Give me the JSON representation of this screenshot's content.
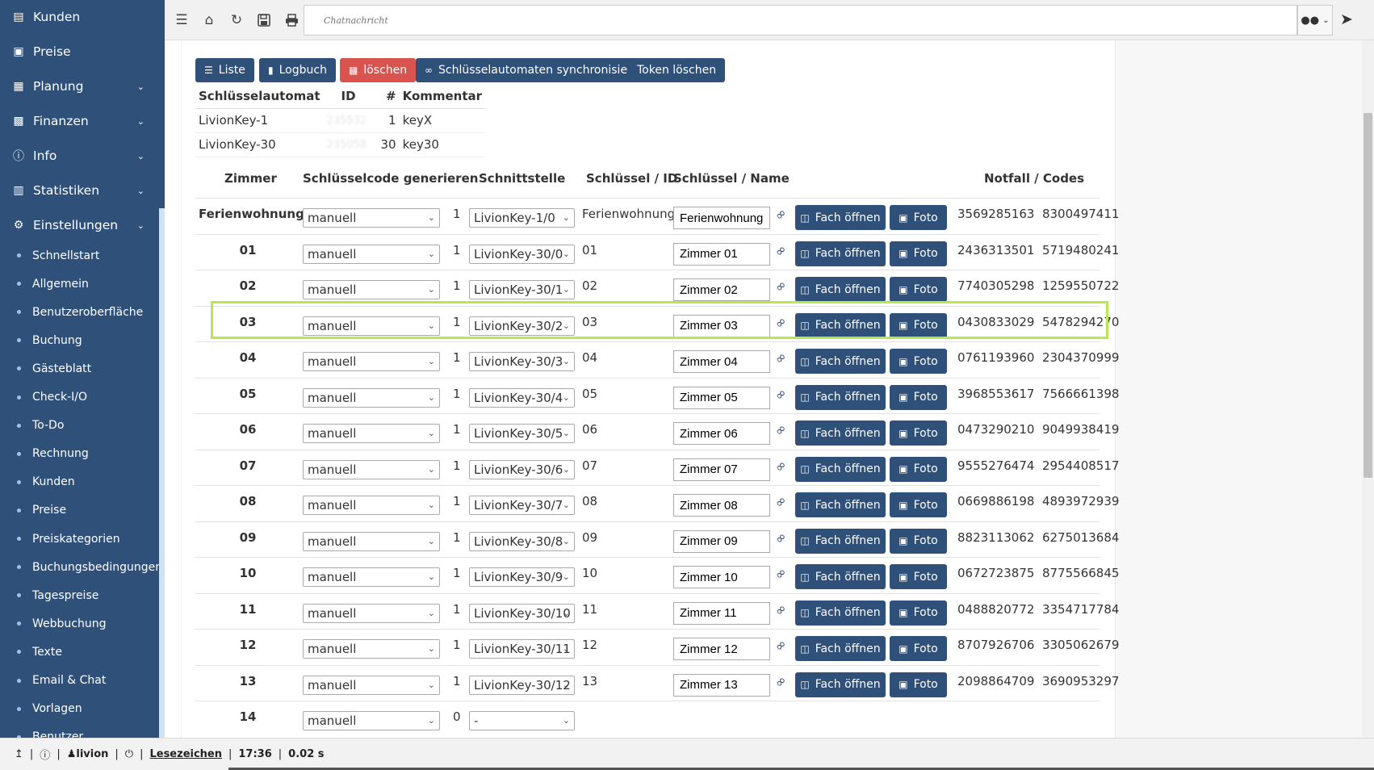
{
  "sidebar": {
    "top_items": [
      {
        "label": "Kunden",
        "icon": "id-card-icon",
        "expandable": false
      },
      {
        "label": "Preise",
        "icon": "money-icon",
        "expandable": false
      },
      {
        "label": "Planung",
        "icon": "calendar-icon",
        "expandable": true
      },
      {
        "label": "Finanzen",
        "icon": "calculator-icon",
        "expandable": true
      },
      {
        "label": "Info",
        "icon": "info-icon",
        "expandable": true
      },
      {
        "label": "Statistiken",
        "icon": "bar-chart-icon",
        "expandable": true
      },
      {
        "label": "Einstellungen",
        "icon": "gear-icon",
        "expandable": true
      }
    ],
    "sub_items": [
      "Schnellstart",
      "Allgemein",
      "Benutzeroberfläche",
      "Buchung",
      "Gästeblatt",
      "Check-I/O",
      "To-Do",
      "Rechnung",
      "Kunden",
      "Preise",
      "Preiskategorien",
      "Buchungsbedingungen",
      "Tagespreise",
      "Webbuchung",
      "Texte",
      "Email & Chat",
      "Vorlagen",
      "Benutzer"
    ]
  },
  "topbar": {
    "chat_placeholder": "Chatnachricht"
  },
  "toolbar": {
    "liste": "Liste",
    "logbuch": "Logbuch",
    "loeschen": "löschen",
    "sync": "Schlüsselautomaten synchronisieren",
    "token": "Token löschen"
  },
  "automaten": {
    "headers": {
      "name": "Schlüsselautomat",
      "id": "ID",
      "num": "#",
      "comment": "Kommentar"
    },
    "rows": [
      {
        "name": "LivionKey-1",
        "id": "235532",
        "num": "1",
        "comment": "keyX"
      },
      {
        "name": "LivionKey-30",
        "id": "235058",
        "num": "30",
        "comment": "key30"
      }
    ]
  },
  "rooms": {
    "headers": {
      "zimmer": "Zimmer",
      "code": "Schlüsselcode generieren",
      "schnittstelle": "Schnittstelle",
      "key_id": "Schlüssel / ID",
      "key_name": "Schlüssel / Name",
      "notfall": "Notfall / Codes"
    },
    "fach_label": "Fach öffnen",
    "foto_label": "Foto",
    "rows": [
      {
        "zimmer": "Ferienwohnung",
        "code": "manuell",
        "count": "1",
        "interface": "LivionKey-1/0",
        "key_id": "Ferienwohnung",
        "key_name": "Ferienwohnung",
        "codes": "3569285163  8300497411"
      },
      {
        "zimmer": "01",
        "code": "manuell",
        "count": "1",
        "interface": "LivionKey-30/0",
        "key_id": "01",
        "key_name": "Zimmer 01",
        "codes": "2436313501  5719480241"
      },
      {
        "zimmer": "02",
        "code": "manuell",
        "count": "1",
        "interface": "LivionKey-30/1",
        "key_id": "02",
        "key_name": "Zimmer 02",
        "codes": "7740305298  1259550722"
      },
      {
        "zimmer": "03",
        "code": "manuell",
        "count": "1",
        "interface": "LivionKey-30/2",
        "key_id": "03",
        "key_name": "Zimmer 03",
        "codes": "0430833029  5478294270"
      },
      {
        "zimmer": "04",
        "code": "manuell",
        "count": "1",
        "interface": "LivionKey-30/3",
        "key_id": "04",
        "key_name": "Zimmer 04",
        "codes": "0761193960  2304370999"
      },
      {
        "zimmer": "05",
        "code": "manuell",
        "count": "1",
        "interface": "LivionKey-30/4",
        "key_id": "05",
        "key_name": "Zimmer 05",
        "codes": "3968553617  7566661398"
      },
      {
        "zimmer": "06",
        "code": "manuell",
        "count": "1",
        "interface": "LivionKey-30/5",
        "key_id": "06",
        "key_name": "Zimmer 06",
        "codes": "0473290210  9049938419"
      },
      {
        "zimmer": "07",
        "code": "manuell",
        "count": "1",
        "interface": "LivionKey-30/6",
        "key_id": "07",
        "key_name": "Zimmer 07",
        "codes": "9555276474  2954408517"
      },
      {
        "zimmer": "08",
        "code": "manuell",
        "count": "1",
        "interface": "LivionKey-30/7",
        "key_id": "08",
        "key_name": "Zimmer 08",
        "codes": "0669886198  4893972939"
      },
      {
        "zimmer": "09",
        "code": "manuell",
        "count": "1",
        "interface": "LivionKey-30/8",
        "key_id": "09",
        "key_name": "Zimmer 09",
        "codes": "8823113062  6275013684"
      },
      {
        "zimmer": "10",
        "code": "manuell",
        "count": "1",
        "interface": "LivionKey-30/9",
        "key_id": "10",
        "key_name": "Zimmer 10",
        "codes": "0672723875  8775566845"
      },
      {
        "zimmer": "11",
        "code": "manuell",
        "count": "1",
        "interface": "LivionKey-30/10",
        "key_id": "11",
        "key_name": "Zimmer 11",
        "codes": "0488820772  3354717784"
      },
      {
        "zimmer": "12",
        "code": "manuell",
        "count": "1",
        "interface": "LivionKey-30/11",
        "key_id": "12",
        "key_name": "Zimmer 12",
        "codes": "8707926706  3305062679"
      },
      {
        "zimmer": "13",
        "code": "manuell",
        "count": "1",
        "interface": "LivionKey-30/12",
        "key_id": "13",
        "key_name": "Zimmer 13",
        "codes": "2098864709  3690953297"
      },
      {
        "zimmer": "14",
        "code": "manuell",
        "count": "0",
        "interface": "-",
        "key_id": "",
        "key_name": "",
        "codes": ""
      }
    ]
  },
  "statusbar": {
    "user": "livion",
    "bookmarks": "Lesezeichen",
    "time": "17:36",
    "duration": "0.02 s"
  }
}
